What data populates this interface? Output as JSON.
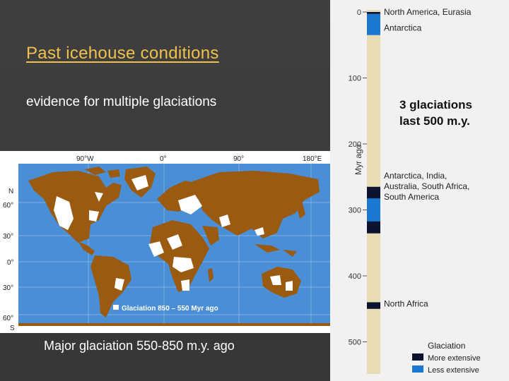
{
  "slide": {
    "title": "Past icehouse conditions",
    "subtitle": "evidence for multiple glaciations",
    "caption": "Major glaciation 550-850 m.y. ago",
    "note_line1": "3 glaciations",
    "note_line2": "last 500 m.y."
  },
  "map": {
    "top_labels": [
      "90°W",
      "0°",
      "90°",
      "180°E"
    ],
    "left_labels": [
      "N",
      "60°",
      "30°",
      "0°",
      "30°",
      "60°",
      "S"
    ],
    "legend_text": "Glaciation 850 – 550 Myr ago",
    "colors": {
      "ocean": "#4a8ed6",
      "land": "#9a5a10",
      "ice": "#ffffff"
    }
  },
  "timeline": {
    "axis_label": "Myr ago",
    "ticks": [
      "0",
      "100",
      "200",
      "300",
      "400",
      "500"
    ],
    "events": [
      {
        "label_lines": [
          "North America, Eurasia"
        ],
        "from_myr": 0,
        "to_myr": 3,
        "extent": "more"
      },
      {
        "label_lines": [
          "Antarctica"
        ],
        "from_myr": 3,
        "to_myr": 35,
        "extent": "less"
      },
      {
        "label_lines": [
          "Antarctica, India,",
          "Australia, South Africa,",
          "South America"
        ],
        "from_myr": 265,
        "to_myr": 335,
        "extent": "mixed"
      },
      {
        "label_lines": [
          "North Africa"
        ],
        "from_myr": 440,
        "to_myr": 450,
        "extent": "more"
      }
    ],
    "legend": {
      "title": "Glaciation",
      "more": "More extensive",
      "less": "Less extensive"
    },
    "colors": {
      "bar": "#e7dcb4",
      "more": "#0c1330",
      "less": "#1b78d0"
    }
  }
}
